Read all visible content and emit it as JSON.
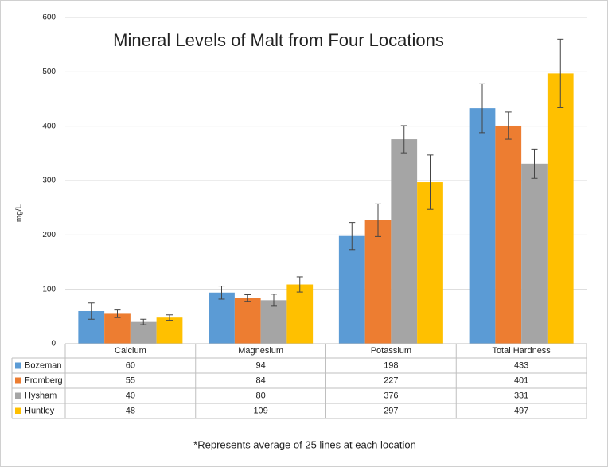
{
  "chart_data": {
    "type": "bar",
    "title": "Mineral Levels of Malt from Four Locations",
    "y_label": "mg/L",
    "footnote": "*Represents average of 25 lines at each location",
    "categories": [
      "Calcium",
      "Magnesium",
      "Potassium",
      "Total Hardness"
    ],
    "series": [
      {
        "name": "Bozeman",
        "color": "#5b9bd5",
        "values": [
          60,
          94,
          198,
          433
        ],
        "errors": [
          15,
          12,
          25,
          45
        ]
      },
      {
        "name": "Fromberg",
        "color": "#ed7d31",
        "values": [
          55,
          84,
          227,
          401
        ],
        "errors": [
          7,
          6,
          30,
          25
        ]
      },
      {
        "name": "Hysham",
        "color": "#a5a5a5",
        "values": [
          40,
          80,
          376,
          331
        ],
        "errors": [
          5,
          11,
          25,
          27
        ]
      },
      {
        "name": "Huntley",
        "color": "#ffc000",
        "values": [
          48,
          109,
          297,
          497
        ],
        "errors": [
          5,
          14,
          50,
          63
        ]
      }
    ],
    "ylim": [
      0,
      600
    ],
    "yticks": [
      0,
      100,
      200,
      300,
      400,
      500,
      600
    ],
    "grid": true
  }
}
